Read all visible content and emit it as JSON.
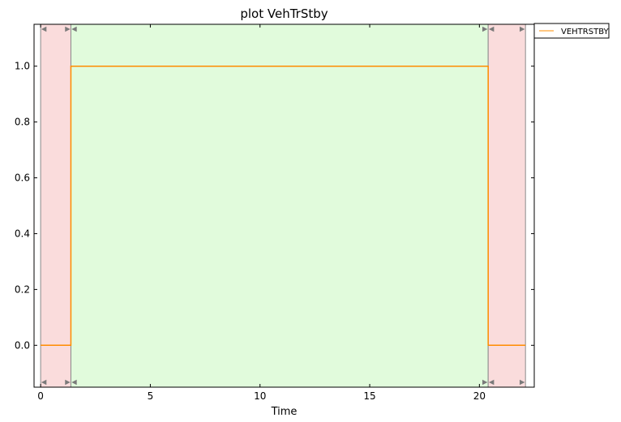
{
  "chart_data": {
    "type": "line",
    "title": "plot VehTrStby",
    "xlabel": "Time",
    "ylabel": "",
    "xlim": [
      -0.3,
      22.5
    ],
    "ylim": [
      -0.15,
      1.15
    ],
    "xticks": [
      0,
      5,
      10,
      15,
      20
    ],
    "xtick_labels": [
      "0",
      "5",
      "10",
      "15",
      "20"
    ],
    "yticks": [
      0.0,
      0.2,
      0.4,
      0.6,
      0.8,
      1.0
    ],
    "ytick_labels": [
      "0.0",
      "0.2",
      "0.4",
      "0.6",
      "0.8",
      "1.0"
    ],
    "grid": false,
    "legend_placement": "outside-top-right",
    "series": [
      {
        "name": "VEHTRSTBY",
        "color": "#ff8c00",
        "step": true,
        "x": [
          0,
          1.38,
          1.38,
          20.4,
          20.4,
          22.1
        ],
        "y": [
          0,
          0,
          1,
          1,
          0,
          0
        ]
      }
    ],
    "regions": [
      {
        "x_start": 0,
        "x_end": 1.38,
        "color": "#fadcdc"
      },
      {
        "x_start": 1.38,
        "x_end": 20.4,
        "color": "#e1fbdc"
      },
      {
        "x_start": 20.4,
        "x_end": 22.1,
        "color": "#fadcdc"
      }
    ],
    "colors": {
      "axes": "#000000",
      "region_border": "#8a8a8a",
      "marker": "#7a7a7a"
    }
  }
}
